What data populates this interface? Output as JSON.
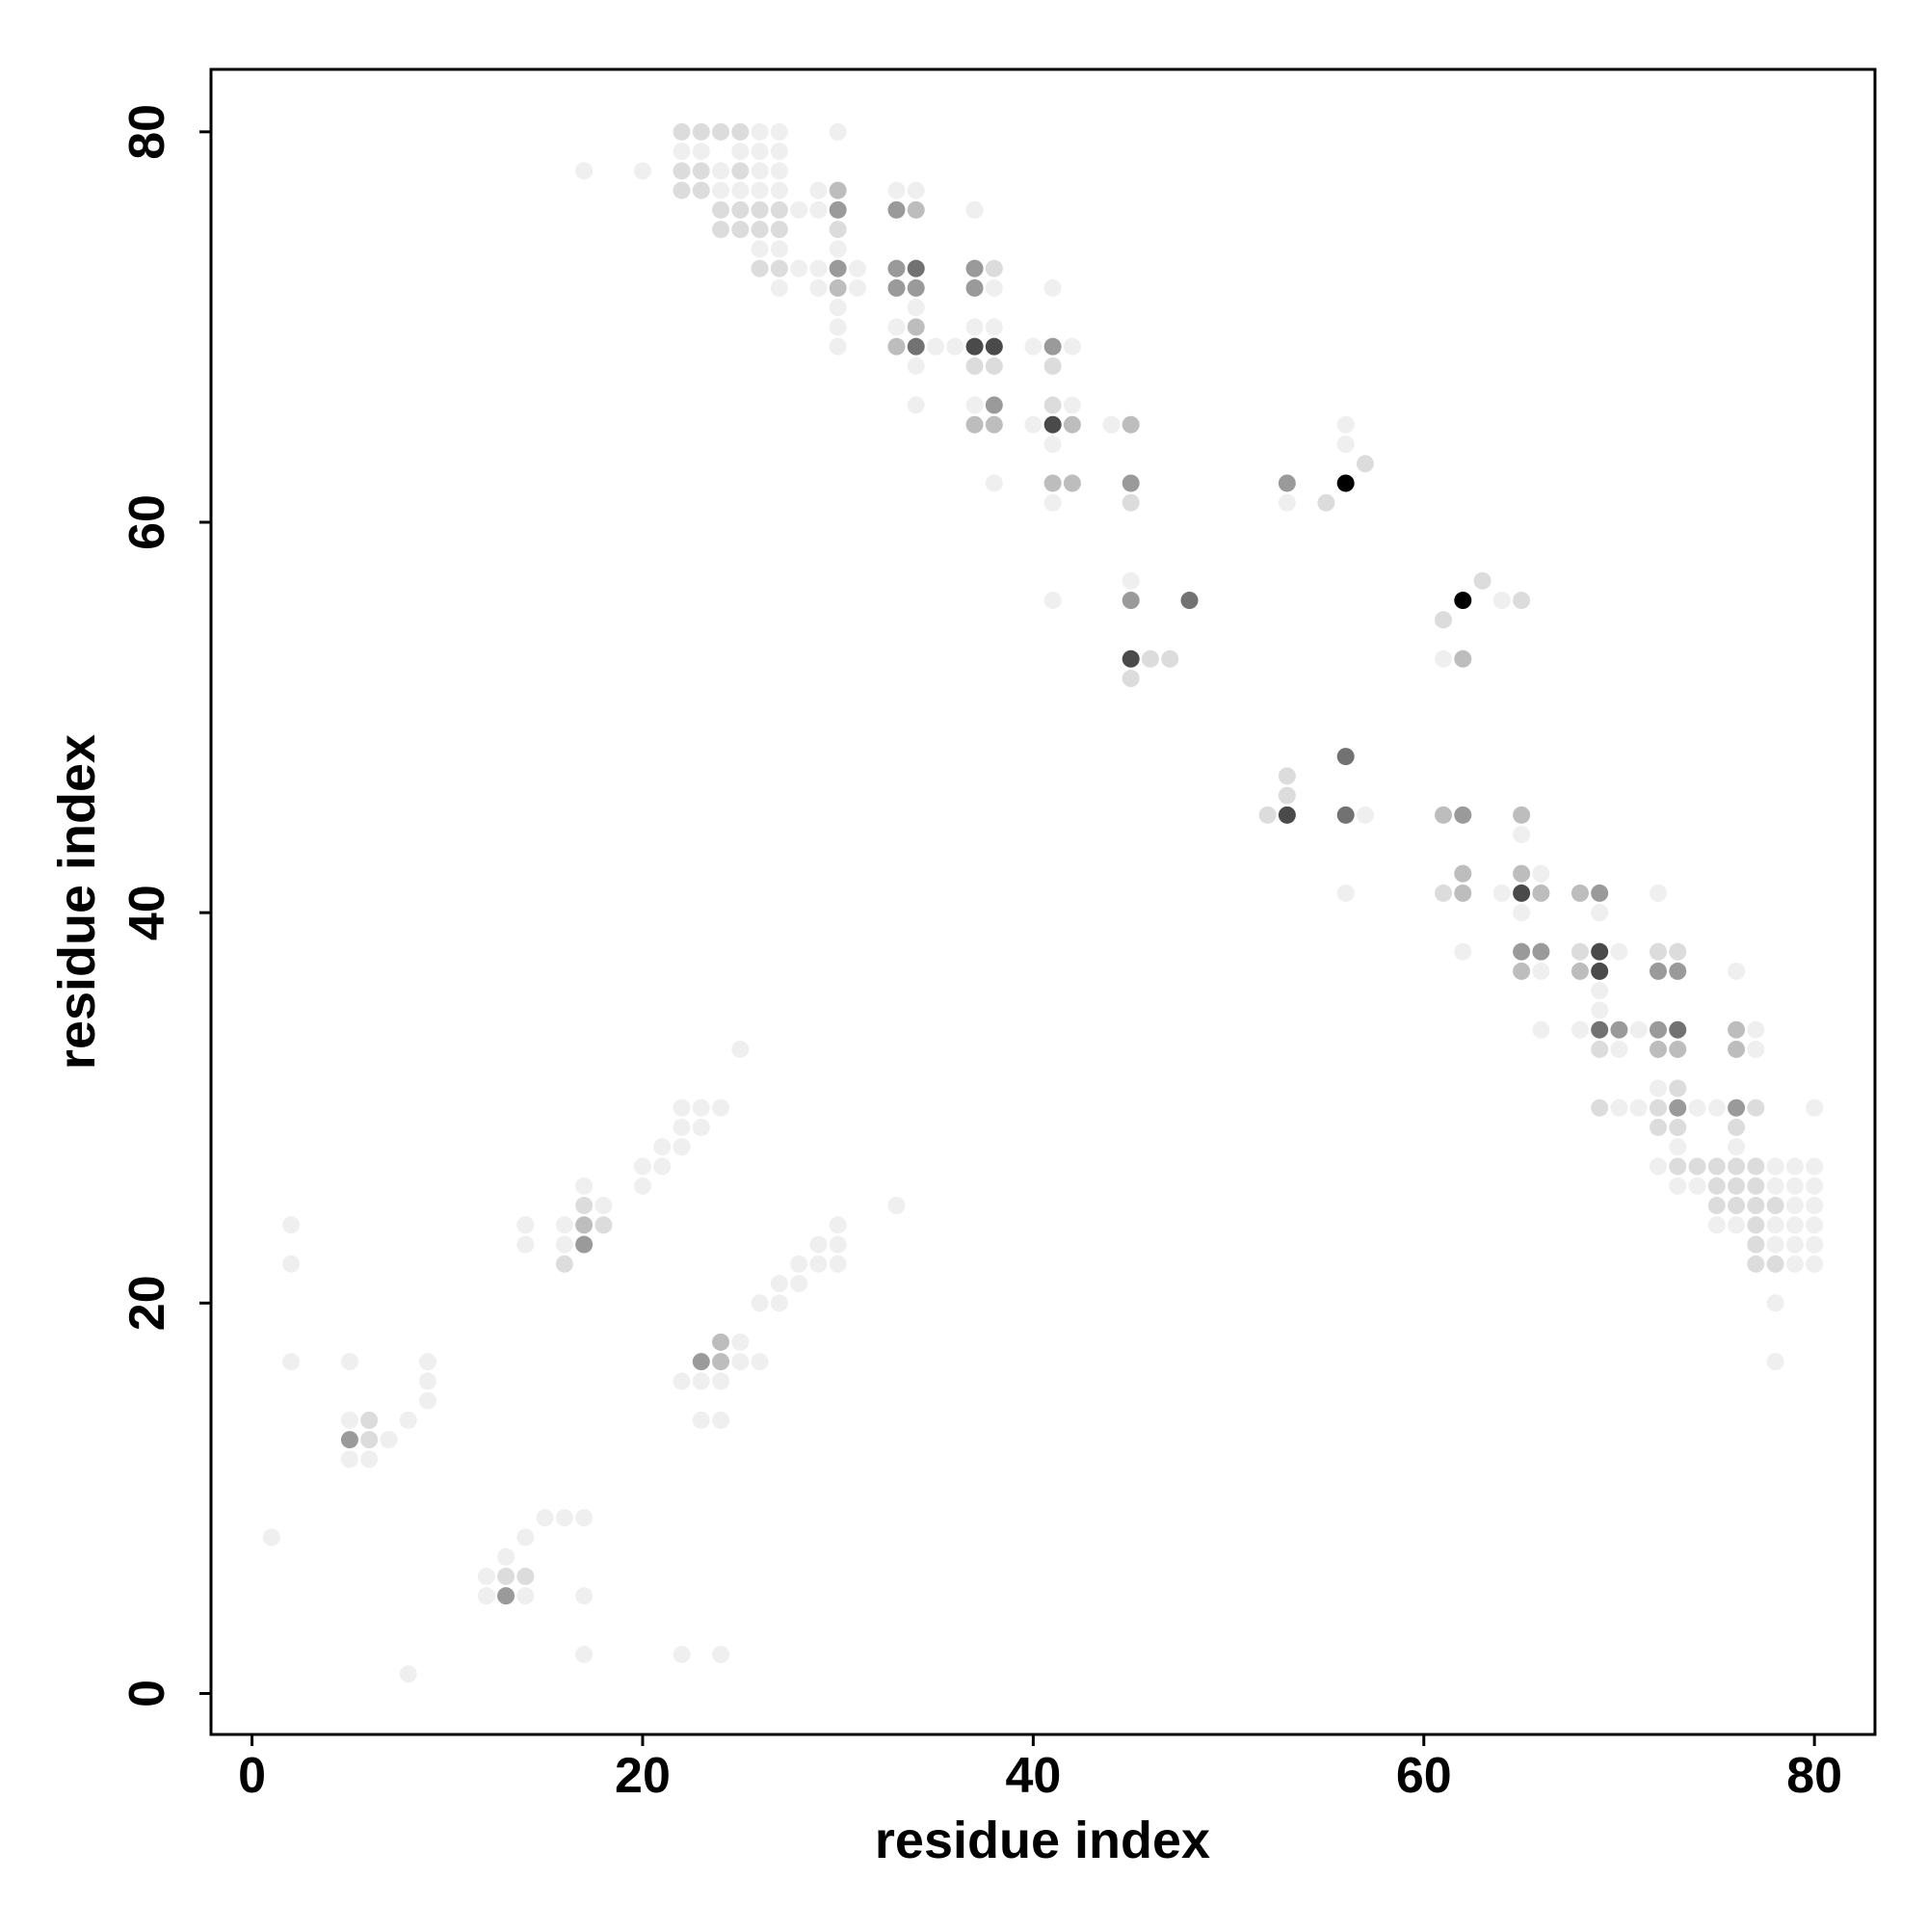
{
  "chart_data": {
    "type": "scatter",
    "xlabel": "residue index",
    "ylabel": "residue index",
    "xlim": [
      -2.1,
      83.1
    ],
    "ylim": [
      -2.1,
      83.2
    ],
    "xticks": [
      0,
      20,
      40,
      60,
      80
    ],
    "yticks": [
      0,
      20,
      40,
      60,
      80
    ],
    "series": [
      {
        "color": "#efefef",
        "x": [
          26,
          27,
          30,
          22,
          23,
          25,
          26,
          27,
          17,
          20,
          24,
          26,
          27,
          24,
          25,
          26,
          27,
          29,
          33,
          34,
          28,
          29,
          37,
          26,
          27,
          30,
          28,
          29,
          31,
          27,
          29,
          31,
          38,
          41,
          30,
          34,
          30,
          33,
          37,
          38,
          30,
          35,
          36,
          40,
          42,
          34,
          34,
          37,
          42,
          40,
          44,
          56,
          41,
          56,
          38,
          41,
          53,
          45,
          41,
          64,
          61,
          57,
          65,
          66,
          56,
          64,
          72,
          65,
          69,
          62,
          70,
          66,
          76,
          69,
          69,
          66,
          68,
          71,
          77,
          70,
          77,
          72,
          70,
          71,
          74,
          75,
          80,
          73,
          76,
          72,
          78,
          79,
          80,
          73,
          74,
          78,
          79,
          80,
          79,
          80,
          75,
          76,
          78,
          79,
          80,
          78,
          79,
          80,
          79,
          80,
          78,
          78,
          25,
          22,
          23,
          24,
          22,
          23,
          21,
          22,
          20,
          21,
          17,
          20,
          18,
          33,
          2,
          14,
          16,
          30,
          14,
          16,
          29,
          30,
          2,
          28,
          29,
          30,
          27,
          28,
          26,
          27,
          25,
          2,
          5,
          9,
          25,
          26,
          9,
          22,
          23,
          24,
          9,
          5,
          8,
          23,
          24,
          7,
          5,
          6,
          15,
          16,
          17,
          1,
          14,
          13,
          12,
          12,
          14,
          17,
          17,
          22,
          24,
          8
        ],
        "values": [
          80,
          80,
          80,
          79,
          79,
          79,
          79,
          79,
          78,
          78,
          78,
          78,
          78,
          77,
          77,
          77,
          77,
          77,
          77,
          77,
          76,
          76,
          76,
          74,
          74,
          74,
          73,
          73,
          73,
          72,
          72,
          72,
          72,
          72,
          71,
          71,
          70,
          70,
          70,
          70,
          69,
          69,
          69,
          69,
          69,
          68,
          66,
          66,
          66,
          65,
          65,
          65,
          64,
          64,
          62,
          61,
          61,
          57,
          56,
          56,
          53,
          45,
          44,
          42,
          41,
          41,
          41,
          40,
          40,
          38,
          38,
          37,
          37,
          36,
          35,
          34,
          34,
          34,
          34,
          33,
          33,
          31,
          30,
          30,
          30,
          30,
          30,
          28,
          28,
          27,
          27,
          27,
          27,
          26,
          26,
          26,
          26,
          26,
          25,
          25,
          24,
          24,
          24,
          24,
          24,
          23,
          23,
          23,
          22,
          22,
          20,
          17,
          33,
          30,
          30,
          30,
          29,
          29,
          28,
          28,
          27,
          27,
          26,
          26,
          25,
          25,
          24,
          24,
          24,
          24,
          23,
          23,
          23,
          23,
          22,
          22,
          22,
          22,
          21,
          21,
          20,
          20,
          18,
          17,
          17,
          17,
          17,
          17,
          16,
          16,
          16,
          16,
          15,
          14,
          14,
          14,
          14,
          13,
          12,
          12,
          9,
          9,
          9,
          8,
          8,
          7,
          6,
          5,
          5,
          5,
          2,
          2,
          2,
          1
        ]
      },
      {
        "color": "#dcdcdc",
        "x": [
          22,
          23,
          24,
          25,
          22,
          23,
          25,
          22,
          23,
          24,
          25,
          26,
          27,
          24,
          25,
          26,
          27,
          30,
          26,
          27,
          38,
          37,
          38,
          41,
          41,
          57,
          45,
          55,
          63,
          65,
          61,
          46,
          47,
          45,
          53,
          53,
          52,
          61,
          68,
          72,
          73,
          69,
          73,
          69,
          72,
          77,
          72,
          73,
          76,
          73,
          74,
          75,
          76,
          77,
          75,
          76,
          77,
          75,
          76,
          77,
          78,
          77,
          77,
          77,
          78,
          17,
          18,
          16,
          6,
          6,
          13,
          14
        ],
        "values": [
          80,
          80,
          80,
          80,
          78,
          78,
          78,
          77,
          77,
          76,
          76,
          76,
          76,
          75,
          75,
          75,
          75,
          75,
          73,
          73,
          73,
          68,
          68,
          68,
          66,
          63,
          61,
          61,
          57,
          56,
          55,
          53,
          53,
          52,
          47,
          46,
          45,
          41,
          38,
          38,
          38,
          33,
          31,
          30,
          30,
          30,
          29,
          29,
          29,
          27,
          27,
          27,
          27,
          27,
          26,
          26,
          26,
          25,
          25,
          25,
          25,
          24,
          23,
          22,
          22,
          25,
          24,
          22,
          14,
          13,
          6,
          6
        ]
      },
      {
        "color": "#bdbdbd",
        "x": [
          30,
          34,
          30,
          34,
          33,
          37,
          38,
          42,
          45,
          41,
          42,
          62,
          61,
          65,
          62,
          65,
          62,
          66,
          68,
          65,
          68,
          76,
          72,
          73,
          76,
          17,
          24,
          24
        ],
        "values": [
          77,
          76,
          72,
          70,
          69,
          65,
          65,
          65,
          65,
          62,
          62,
          53,
          45,
          45,
          42,
          42,
          41,
          41,
          41,
          37,
          37,
          34,
          33,
          33,
          33,
          24,
          18,
          17
        ]
      },
      {
        "color": "#9a9a9a",
        "x": [
          30,
          33,
          30,
          33,
          37,
          33,
          34,
          37,
          41,
          38,
          45,
          53,
          45,
          62,
          69,
          65,
          66,
          72,
          73,
          70,
          72,
          73,
          76,
          17,
          23,
          5,
          13
        ],
        "values": [
          76,
          76,
          73,
          73,
          73,
          72,
          72,
          72,
          69,
          66,
          62,
          62,
          56,
          45,
          41,
          38,
          38,
          37,
          37,
          34,
          34,
          30,
          30,
          23,
          17,
          13,
          5
        ]
      },
      {
        "color": "#727272",
        "x": [
          34,
          34,
          48,
          56,
          56,
          69,
          73
        ],
        "values": [
          73,
          69,
          56,
          48,
          45,
          34,
          34
        ]
      },
      {
        "color": "#4a4a4a",
        "x": [
          37,
          38,
          41,
          45,
          53,
          65,
          69,
          69
        ],
        "values": [
          69,
          69,
          65,
          53,
          45,
          41,
          38,
          37
        ]
      },
      {
        "color": "#000000",
        "x": [
          56,
          62
        ],
        "values": [
          62,
          56
        ]
      }
    ]
  }
}
